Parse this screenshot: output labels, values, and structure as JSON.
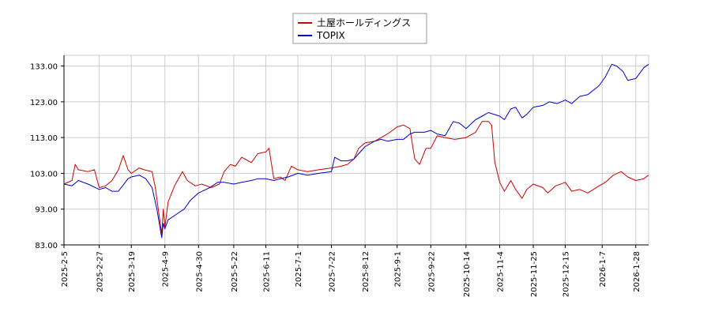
{
  "chart_data": {
    "type": "line",
    "title": "",
    "xlabel": "",
    "ylabel": "",
    "ylim": [
      83,
      136
    ],
    "grid": true,
    "legend_position": "top-center",
    "y_ticks": [
      "83.00",
      "93.00",
      "103.00",
      "113.00",
      "123.00",
      "133.00"
    ],
    "x_ticks": [
      "2025-2-5",
      "2025-2-27",
      "2025-3-19",
      "2025-4-9",
      "2025-4-30",
      "2025-5-22",
      "2025-6-11",
      "2025-7-1",
      "2025-7-22",
      "2025-8-12",
      "2025-9-1",
      "2025-9-22",
      "2025-10-14",
      "2025-11-4",
      "2025-11-25",
      "2025-12-15",
      "2026-1-7",
      "2026-1-28"
    ],
    "series": [
      {
        "name": "土屋ホールディングス",
        "color": "#cc0000",
        "points": [
          [
            "2025-2-5",
            100.0
          ],
          [
            "2025-2-10",
            101.0
          ],
          [
            "2025-2-12",
            105.5
          ],
          [
            "2025-2-14",
            104.0
          ],
          [
            "2025-2-20",
            103.5
          ],
          [
            "2025-2-24",
            104.0
          ],
          [
            "2025-2-27",
            99.0
          ],
          [
            "2025-3-3",
            99.5
          ],
          [
            "2025-3-7",
            101.0
          ],
          [
            "2025-3-11",
            104.0
          ],
          [
            "2025-3-14",
            108.0
          ],
          [
            "2025-3-17",
            104.0
          ],
          [
            "2025-3-19",
            103.0
          ],
          [
            "2025-3-24",
            104.5
          ],
          [
            "2025-3-27",
            104.0
          ],
          [
            "2025-4-1",
            103.5
          ],
          [
            "2025-4-3",
            99.0
          ],
          [
            "2025-4-7",
            86.0
          ],
          [
            "2025-4-8",
            93.0
          ],
          [
            "2025-4-9",
            88.0
          ],
          [
            "2025-4-11",
            95.0
          ],
          [
            "2025-4-15",
            99.5
          ],
          [
            "2025-4-20",
            103.5
          ],
          [
            "2025-4-23",
            101.0
          ],
          [
            "2025-4-28",
            99.5
          ],
          [
            "2025-5-2",
            100.0
          ],
          [
            "2025-5-8",
            99.0
          ],
          [
            "2025-5-13",
            100.0
          ],
          [
            "2025-5-16",
            103.5
          ],
          [
            "2025-5-20",
            105.5
          ],
          [
            "2025-5-23",
            105.0
          ],
          [
            "2025-5-27",
            107.5
          ],
          [
            "2025-6-2",
            106.0
          ],
          [
            "2025-6-6",
            108.5
          ],
          [
            "2025-6-11",
            109.0
          ],
          [
            "2025-6-13",
            110.0
          ],
          [
            "2025-6-16",
            101.5
          ],
          [
            "2025-6-20",
            102.0
          ],
          [
            "2025-6-23",
            101.0
          ],
          [
            "2025-6-27",
            105.0
          ],
          [
            "2025-7-1",
            104.0
          ],
          [
            "2025-7-7",
            103.5
          ],
          [
            "2025-7-14",
            104.0
          ],
          [
            "2025-7-22",
            104.5
          ],
          [
            "2025-7-28",
            105.0
          ],
          [
            "2025-8-1",
            105.5
          ],
          [
            "2025-8-5",
            107.0
          ],
          [
            "2025-8-8",
            110.0
          ],
          [
            "2025-8-12",
            111.5
          ],
          [
            "2025-8-18",
            112.0
          ],
          [
            "2025-8-22",
            113.0
          ],
          [
            "2025-8-26",
            114.0
          ],
          [
            "2025-9-1",
            116.0
          ],
          [
            "2025-9-5",
            116.5
          ],
          [
            "2025-9-9",
            115.5
          ],
          [
            "2025-9-12",
            107.0
          ],
          [
            "2025-9-15",
            105.5
          ],
          [
            "2025-9-19",
            110.0
          ],
          [
            "2025-9-22",
            110.0
          ],
          [
            "2025-9-26",
            113.5
          ],
          [
            "2025-10-1",
            113.0
          ],
          [
            "2025-10-7",
            112.5
          ],
          [
            "2025-10-14",
            113.0
          ],
          [
            "2025-10-20",
            114.5
          ],
          [
            "2025-10-24",
            117.5
          ],
          [
            "2025-10-28",
            117.5
          ],
          [
            "2025-10-30",
            116.5
          ],
          [
            "2025-11-1",
            106.0
          ],
          [
            "2025-11-4",
            100.5
          ],
          [
            "2025-11-7",
            98.0
          ],
          [
            "2025-11-11",
            101.0
          ],
          [
            "2025-11-14",
            98.5
          ],
          [
            "2025-11-18",
            96.0
          ],
          [
            "2025-11-21",
            98.5
          ],
          [
            "2025-11-25",
            100.0
          ],
          [
            "2025-12-1",
            99.0
          ],
          [
            "2025-12-4",
            97.5
          ],
          [
            "2025-12-9",
            99.5
          ],
          [
            "2025-12-15",
            100.5
          ],
          [
            "2025-12-19",
            98.0
          ],
          [
            "2025-12-24",
            98.5
          ],
          [
            "2025-12-29",
            97.5
          ],
          [
            "2026-1-5",
            99.5
          ],
          [
            "2026-1-9",
            100.5
          ],
          [
            "2026-1-14",
            102.5
          ],
          [
            "2026-1-19",
            103.5
          ],
          [
            "2026-1-23",
            102.0
          ],
          [
            "2026-1-28",
            101.0
          ],
          [
            "2026-2-2",
            101.5
          ],
          [
            "2026-2-5",
            102.5
          ]
        ]
      },
      {
        "name": "TOPIX",
        "color": "#0000cc",
        "points": [
          [
            "2025-2-5",
            100.0
          ],
          [
            "2025-2-10",
            99.5
          ],
          [
            "2025-2-14",
            101.0
          ],
          [
            "2025-2-20",
            100.0
          ],
          [
            "2025-2-27",
            98.5
          ],
          [
            "2025-3-3",
            99.0
          ],
          [
            "2025-3-7",
            98.0
          ],
          [
            "2025-3-11",
            98.0
          ],
          [
            "2025-3-17",
            101.5
          ],
          [
            "2025-3-19",
            102.0
          ],
          [
            "2025-3-24",
            102.5
          ],
          [
            "2025-3-28",
            101.5
          ],
          [
            "2025-4-1",
            99.0
          ],
          [
            "2025-4-4",
            93.0
          ],
          [
            "2025-4-7",
            85.0
          ],
          [
            "2025-4-8",
            89.0
          ],
          [
            "2025-4-9",
            87.5
          ],
          [
            "2025-4-11",
            90.0
          ],
          [
            "2025-4-16",
            91.5
          ],
          [
            "2025-4-21",
            93.0
          ],
          [
            "2025-4-25",
            95.5
          ],
          [
            "2025-4-30",
            97.5
          ],
          [
            "2025-5-7",
            99.0
          ],
          [
            "2025-5-12",
            100.5
          ],
          [
            "2025-5-16",
            100.5
          ],
          [
            "2025-5-22",
            100.0
          ],
          [
            "2025-5-27",
            100.5
          ],
          [
            "2025-6-2",
            101.0
          ],
          [
            "2025-6-6",
            101.5
          ],
          [
            "2025-6-11",
            101.5
          ],
          [
            "2025-6-16",
            101.0
          ],
          [
            "2025-6-20",
            101.5
          ],
          [
            "2025-6-25",
            102.0
          ],
          [
            "2025-7-1",
            103.0
          ],
          [
            "2025-7-7",
            102.5
          ],
          [
            "2025-7-14",
            103.0
          ],
          [
            "2025-7-22",
            103.5
          ],
          [
            "2025-7-24",
            107.5
          ],
          [
            "2025-7-28",
            106.5
          ],
          [
            "2025-8-1",
            106.5
          ],
          [
            "2025-8-5",
            107.0
          ],
          [
            "2025-8-8",
            108.5
          ],
          [
            "2025-8-12",
            110.5
          ],
          [
            "2025-8-18",
            112.0
          ],
          [
            "2025-8-22",
            112.5
          ],
          [
            "2025-8-26",
            112.0
          ],
          [
            "2025-9-1",
            112.5
          ],
          [
            "2025-9-5",
            112.5
          ],
          [
            "2025-9-9",
            114.0
          ],
          [
            "2025-9-12",
            114.5
          ],
          [
            "2025-9-18",
            114.5
          ],
          [
            "2025-9-22",
            115.0
          ],
          [
            "2025-9-26",
            114.0
          ],
          [
            "2025-10-1",
            113.5
          ],
          [
            "2025-10-6",
            117.5
          ],
          [
            "2025-10-10",
            117.0
          ],
          [
            "2025-10-14",
            115.5
          ],
          [
            "2025-10-20",
            118.0
          ],
          [
            "2025-10-24",
            119.0
          ],
          [
            "2025-10-28",
            120.0
          ],
          [
            "2025-11-4",
            119.0
          ],
          [
            "2025-11-7",
            118.0
          ],
          [
            "2025-11-11",
            121.0
          ],
          [
            "2025-11-14",
            121.5
          ],
          [
            "2025-11-18",
            118.5
          ],
          [
            "2025-11-21",
            119.5
          ],
          [
            "2025-11-25",
            121.5
          ],
          [
            "2025-12-1",
            122.0
          ],
          [
            "2025-12-5",
            123.0
          ],
          [
            "2025-12-10",
            122.5
          ],
          [
            "2025-12-15",
            123.5
          ],
          [
            "2025-12-19",
            122.5
          ],
          [
            "2025-12-24",
            124.5
          ],
          [
            "2025-12-29",
            125.0
          ],
          [
            "2026-1-5",
            127.5
          ],
          [
            "2026-1-9",
            130.0
          ],
          [
            "2026-1-13",
            133.5
          ],
          [
            "2026-1-16",
            133.0
          ],
          [
            "2026-1-20",
            131.5
          ],
          [
            "2026-1-23",
            129.0
          ],
          [
            "2026-1-28",
            129.5
          ],
          [
            "2026-2-2",
            132.5
          ],
          [
            "2026-2-5",
            133.5
          ]
        ]
      }
    ]
  }
}
